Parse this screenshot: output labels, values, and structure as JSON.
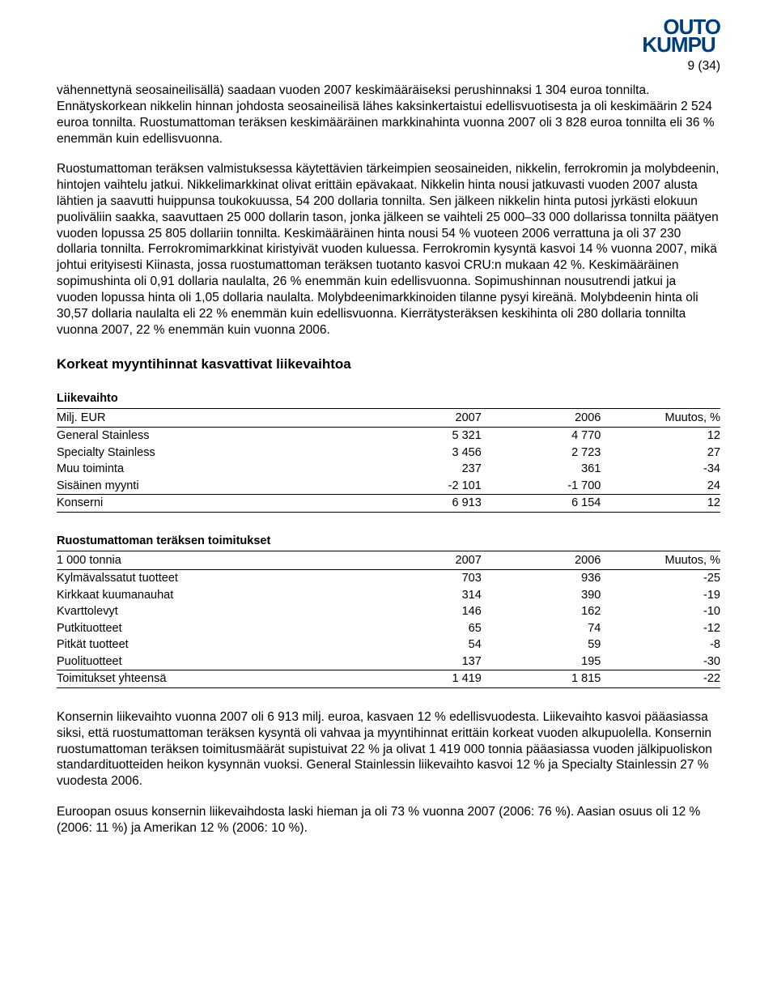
{
  "logo": {
    "line1": "OUTO",
    "line2": "KUMPU"
  },
  "page_num": "9 (34)",
  "para1": "vähennettynä seosaineilisällä) saadaan vuoden 2007 keskimääräiseksi perushinnaksi 1 304 euroa tonnilta. Ennätyskorkean nikkelin hinnan johdosta seosaineilisä lähes kaksinkertaistui edellisvuotisesta ja oli keskimäärin 2 524 euroa tonnilta. Ruostumattoman teräksen keskimääräinen markkinahinta vuonna 2007 oli 3 828 euroa tonnilta eli 36 % enemmän kuin edellisvuonna.",
  "para2": "Ruostumattoman teräksen valmistuksessa käytettävien tärkeimpien seosaineiden, nikkelin, ferrokromin ja molybdeenin, hintojen vaihtelu jatkui. Nikkelimarkkinat olivat erittäin epävakaat. Nikkelin hinta nousi jatkuvasti vuoden 2007 alusta lähtien ja saavutti huippunsa toukokuussa, 54 200 dollaria tonnilta. Sen jälkeen nikkelin hinta putosi jyrkästi elokuun puoliväliin saakka, saavuttaen 25 000 dollarin tason, jonka jälkeen se vaihteli 25 000–33 000 dollarissa tonnilta päätyen vuoden lopussa 25 805 dollariin tonnilta. Keskimääräinen hinta nousi 54 % vuoteen 2006 verrattuna ja oli 37 230 dollaria tonnilta. Ferrokromimarkkinat kiristyivät vuoden kuluessa. Ferrokromin kysyntä kasvoi 14 % vuonna 2007, mikä johtui erityisesti Kiinasta, jossa ruostumattoman teräksen tuotanto kasvoi CRU:n mukaan 42 %. Keskimääräinen sopimushinta oli 0,91 dollaria naulalta, 26 % enemmän kuin edellisvuonna. Sopimushinnan nousutrendi jatkui ja vuoden lopussa hinta oli 1,05 dollaria naulalta. Molybdeenimarkkinoiden tilanne pysyi kireänä. Molybdeenin hinta oli 30,57 dollaria naulalta eli 22 % enemmän kuin edellisvuonna. Kierrätysteräksen keskihinta oli 280 dollaria tonnilta vuonna 2007, 22 % enemmän kuin vuonna 2006.",
  "section_title": "Korkeat myyntihinnat kasvattivat liikevaihtoa",
  "table1": {
    "title": "Liikevaihto",
    "header": [
      "Milj. EUR",
      "2007",
      "2006",
      "Muutos, %"
    ],
    "rows": [
      [
        "General Stainless",
        "5 321",
        "4 770",
        "12"
      ],
      [
        "Specialty Stainless",
        "3 456",
        "2 723",
        "27"
      ],
      [
        "Muu toiminta",
        "237",
        "361",
        "-34"
      ],
      [
        "Sisäinen myynti",
        "-2 101",
        "-1 700",
        "24"
      ]
    ],
    "total": [
      "Konserni",
      "6 913",
      "6 154",
      "12"
    ]
  },
  "table2": {
    "title": "Ruostumattoman teräksen toimitukset",
    "header": [
      "1 000 tonnia",
      "2007",
      "2006",
      "Muutos, %"
    ],
    "rows": [
      [
        "Kylmävalssatut tuotteet",
        "703",
        "936",
        "-25"
      ],
      [
        "Kirkkaat kuumanauhat",
        "314",
        "390",
        "-19"
      ],
      [
        "Kvarttolevyt",
        "146",
        "162",
        "-10"
      ],
      [
        "Putkituotteet",
        "65",
        "74",
        "-12"
      ],
      [
        "Pitkät tuotteet",
        "54",
        "59",
        "-8"
      ],
      [
        "Puolituotteet",
        "137",
        "195",
        "-30"
      ]
    ],
    "total": [
      "Toimitukset yhteensä",
      "1 419",
      "1 815",
      "-22"
    ]
  },
  "para3": "Konsernin liikevaihto vuonna 2007 oli 6 913 milj. euroa, kasvaen 12 % edellisvuodesta. Liikevaihto kasvoi pääasiassa siksi, että ruostumattoman teräksen kysyntä oli vahvaa ja myyntihinnat erittäin korkeat vuoden alkupuolella. Konsernin ruostumattoman teräksen toimitusmäärät supistuivat 22 % ja olivat 1 419 000 tonnia pääasiassa vuoden jälkipuoliskon standardituotteiden heikon kysynnän vuoksi. General Stainlessin liikevaihto kasvoi 12 % ja Specialty Stainlessin 27 % vuodesta 2006.",
  "para4": "Euroopan osuus konsernin liikevaihdosta laski hieman ja oli 73 % vuonna 2007 (2006: 76 %). Aasian osuus oli 12 % (2006: 11 %) ja Amerikan 12 % (2006: 10 %)."
}
